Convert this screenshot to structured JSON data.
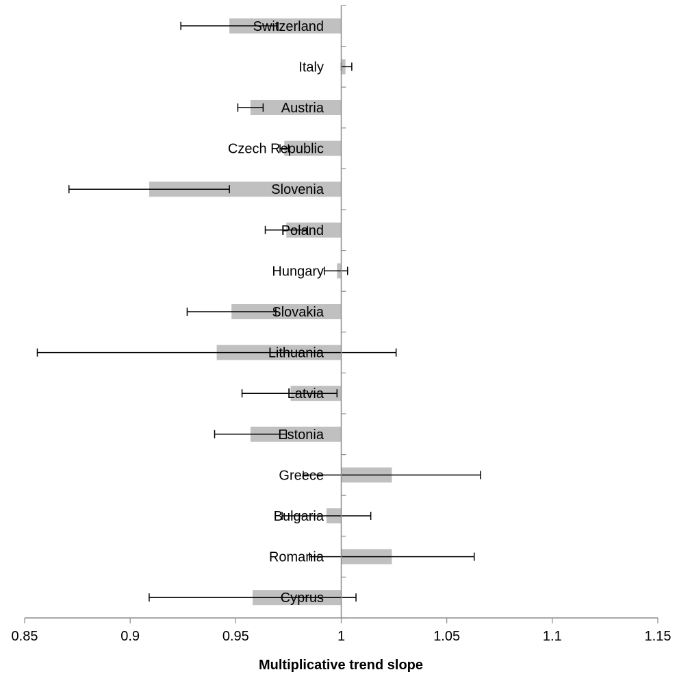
{
  "chart_data": {
    "type": "bar",
    "orientation": "horizontal",
    "title": "",
    "xlabel": "Multiplicative trend slope",
    "ylabel": "",
    "xlim": [
      0.85,
      1.15
    ],
    "baseline": 1,
    "x_ticks": [
      0.85,
      0.9,
      0.95,
      1,
      1.05,
      1.1,
      1.15
    ],
    "x_tick_labels": [
      "0.85",
      "0.9",
      "0.95",
      "1",
      "1.05",
      "1.1",
      "1.15"
    ],
    "legend": "none",
    "grid": false,
    "colors": {
      "bar": "#c0c0c0",
      "axis": "#8c8c8c",
      "error_bar": "#000000",
      "text": "#000000"
    },
    "categories": [
      "Switzerland",
      "Italy",
      "Austria",
      "Czech Republic",
      "Slovenia",
      "Poland",
      "Hungary",
      "Slovakia",
      "Lithuania",
      "Latvia",
      "Estonia",
      "Greece",
      "Bulgaria",
      "Romania",
      "Cyprus"
    ],
    "values": [
      0.947,
      1.002,
      0.957,
      0.973,
      0.909,
      0.974,
      0.998,
      0.948,
      0.941,
      0.976,
      0.957,
      1.024,
      0.993,
      1.024,
      0.958
    ],
    "error_low": [
      0.924,
      1.0,
      0.951,
      0.971,
      0.871,
      0.964,
      0.992,
      0.927,
      0.856,
      0.953,
      0.94,
      0.982,
      0.972,
      0.985,
      0.909
    ],
    "error_high": [
      0.97,
      1.005,
      0.963,
      0.975,
      0.947,
      0.984,
      1.003,
      0.969,
      1.026,
      0.998,
      0.974,
      1.066,
      1.014,
      1.063,
      1.007
    ]
  }
}
